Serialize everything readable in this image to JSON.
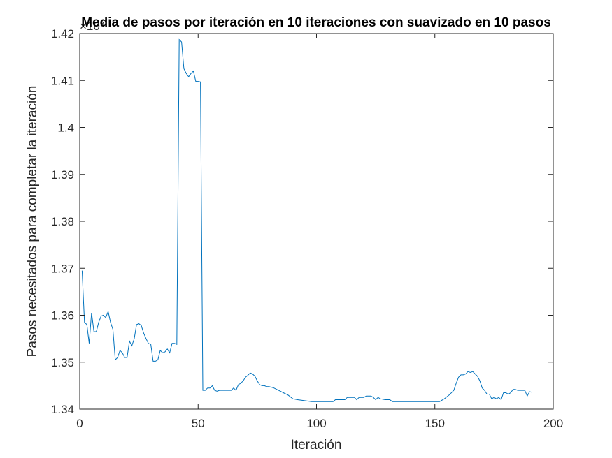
{
  "chart_data": {
    "type": "line",
    "title": "Media de pasos por iteración en 10 iteraciones con suavizado en 10 pasos",
    "xlabel": "Iteración",
    "ylabel": "Pasos necesitados para completar la iteración",
    "y_exponent_label": "×10⁴",
    "xlim": [
      0,
      200
    ],
    "ylim": [
      1.34,
      1.42
    ],
    "x_ticks": [
      "0",
      "50",
      "100",
      "150",
      "200"
    ],
    "y_ticks": [
      "1.34",
      "1.35",
      "1.36",
      "1.37",
      "1.38",
      "1.39",
      "1.4",
      "1.41",
      "1.42"
    ],
    "x_tick_values": [
      0,
      50,
      100,
      150,
      200
    ],
    "y_tick_values": [
      1.34,
      1.35,
      1.36,
      1.37,
      1.38,
      1.39,
      1.4,
      1.41,
      1.42
    ],
    "grid": false,
    "series": [
      {
        "color": "#0072BD",
        "points": [
          [
            1,
            1.3695
          ],
          [
            2,
            1.3585
          ],
          [
            3,
            1.358
          ],
          [
            4,
            1.354
          ],
          [
            5,
            1.3605
          ],
          [
            6,
            1.3565
          ],
          [
            7,
            1.3565
          ],
          [
            8,
            1.3585
          ],
          [
            9,
            1.3598
          ],
          [
            10,
            1.36
          ],
          [
            11,
            1.3595
          ],
          [
            12,
            1.3608
          ],
          [
            13,
            1.3585
          ],
          [
            14,
            1.357
          ],
          [
            15,
            1.3505
          ],
          [
            16,
            1.351
          ],
          [
            17,
            1.3525
          ],
          [
            18,
            1.352
          ],
          [
            19,
            1.351
          ],
          [
            20,
            1.351
          ],
          [
            21,
            1.3545
          ],
          [
            22,
            1.3535
          ],
          [
            23,
            1.355
          ],
          [
            24,
            1.358
          ],
          [
            25,
            1.3582
          ],
          [
            26,
            1.3578
          ],
          [
            27,
            1.3562
          ],
          [
            28,
            1.355
          ],
          [
            29,
            1.354
          ],
          [
            30,
            1.3538
          ],
          [
            31,
            1.3502
          ],
          [
            32,
            1.3502
          ],
          [
            33,
            1.3505
          ],
          [
            34,
            1.3525
          ],
          [
            35,
            1.352
          ],
          [
            36,
            1.3522
          ],
          [
            37,
            1.3528
          ],
          [
            38,
            1.352
          ],
          [
            39,
            1.354
          ],
          [
            40,
            1.354
          ],
          [
            41,
            1.3538
          ],
          [
            42,
            1.4187
          ],
          [
            43,
            1.4182
          ],
          [
            44,
            1.4125
          ],
          [
            45,
            1.4115
          ],
          [
            46,
            1.4108
          ],
          [
            47,
            1.4115
          ],
          [
            48,
            1.412
          ],
          [
            49,
            1.4098
          ],
          [
            50,
            1.4098
          ],
          [
            51,
            1.4097
          ],
          [
            52,
            1.344
          ],
          [
            53,
            1.344
          ],
          [
            54,
            1.3445
          ],
          [
            55,
            1.3445
          ],
          [
            56,
            1.345
          ],
          [
            57,
            1.344
          ],
          [
            58,
            1.3438
          ],
          [
            59,
            1.344
          ],
          [
            60,
            1.344
          ],
          [
            62,
            1.344
          ],
          [
            64,
            1.344
          ],
          [
            65,
            1.3445
          ],
          [
            66,
            1.344
          ],
          [
            67,
            1.3452
          ],
          [
            68,
            1.3455
          ],
          [
            69,
            1.346
          ],
          [
            70,
            1.3468
          ],
          [
            71,
            1.3472
          ],
          [
            72,
            1.3477
          ],
          [
            73,
            1.3475
          ],
          [
            74,
            1.347
          ],
          [
            75,
            1.346
          ],
          [
            76,
            1.3452
          ],
          [
            77,
            1.345
          ],
          [
            78,
            1.345
          ],
          [
            79,
            1.3448
          ],
          [
            80,
            1.3448
          ],
          [
            82,
            1.3445
          ],
          [
            84,
            1.344
          ],
          [
            86,
            1.3435
          ],
          [
            88,
            1.343
          ],
          [
            90,
            1.3422
          ],
          [
            92,
            1.342
          ],
          [
            95,
            1.3418
          ],
          [
            98,
            1.3416
          ],
          [
            100,
            1.3416
          ],
          [
            105,
            1.3416
          ],
          [
            107,
            1.3416
          ],
          [
            108,
            1.342
          ],
          [
            110,
            1.342
          ],
          [
            112,
            1.342
          ],
          [
            113,
            1.3425
          ],
          [
            116,
            1.3425
          ],
          [
            117,
            1.342
          ],
          [
            118,
            1.3425
          ],
          [
            120,
            1.3425
          ],
          [
            121,
            1.3428
          ],
          [
            123,
            1.3428
          ],
          [
            124,
            1.3425
          ],
          [
            125,
            1.342
          ],
          [
            126,
            1.3425
          ],
          [
            127,
            1.3422
          ],
          [
            129,
            1.342
          ],
          [
            131,
            1.342
          ],
          [
            132,
            1.3416
          ],
          [
            140,
            1.3416
          ],
          [
            145,
            1.3416
          ],
          [
            150,
            1.3416
          ],
          [
            152,
            1.3416
          ],
          [
            154,
            1.3422
          ],
          [
            156,
            1.343
          ],
          [
            158,
            1.344
          ],
          [
            159,
            1.3455
          ],
          [
            160,
            1.3468
          ],
          [
            161,
            1.3473
          ],
          [
            162,
            1.3473
          ],
          [
            163,
            1.3475
          ],
          [
            164,
            1.348
          ],
          [
            165,
            1.3478
          ],
          [
            166,
            1.348
          ],
          [
            167,
            1.3475
          ],
          [
            168,
            1.347
          ],
          [
            169,
            1.346
          ],
          [
            170,
            1.3445
          ],
          [
            171,
            1.344
          ],
          [
            172,
            1.3432
          ],
          [
            173,
            1.3432
          ],
          [
            174,
            1.3422
          ],
          [
            175,
            1.3425
          ],
          [
            176,
            1.3422
          ],
          [
            177,
            1.3425
          ],
          [
            178,
            1.342
          ],
          [
            179,
            1.3435
          ],
          [
            180,
            1.3435
          ],
          [
            181,
            1.3432
          ],
          [
            182,
            1.3435
          ],
          [
            183,
            1.3442
          ],
          [
            184,
            1.3442
          ],
          [
            185,
            1.344
          ],
          [
            186,
            1.344
          ],
          [
            187,
            1.344
          ],
          [
            188,
            1.344
          ],
          [
            189,
            1.3428
          ],
          [
            190,
            1.3437
          ],
          [
            191,
            1.3436
          ]
        ]
      }
    ]
  }
}
